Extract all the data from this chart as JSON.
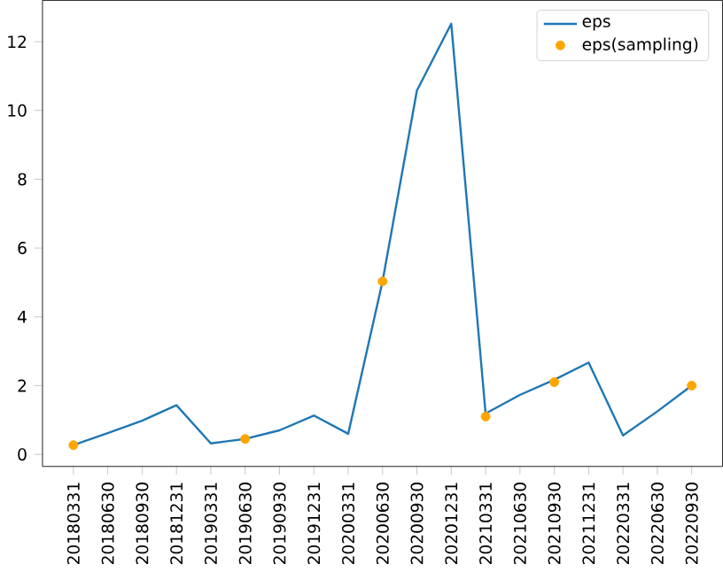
{
  "chart_data": {
    "type": "line",
    "categories": [
      "20180331",
      "20180630",
      "20180930",
      "20181231",
      "20190331",
      "20190630",
      "20190930",
      "20191231",
      "20200331",
      "20200630",
      "20200930",
      "20201231",
      "20210331",
      "20210630",
      "20210930",
      "20211231",
      "20220331",
      "20220630",
      "20220930"
    ],
    "series": [
      {
        "name": "eps",
        "color": "#1f77b4",
        "values": [
          0.27,
          0.62,
          0.98,
          1.43,
          0.32,
          0.45,
          0.7,
          1.13,
          0.6,
          5.03,
          10.58,
          12.52,
          1.19,
          1.73,
          2.17,
          2.67,
          0.55,
          1.25,
          2.0
        ]
      },
      {
        "name": "eps(sampling)",
        "type": "scatter",
        "color": "#ffa500",
        "x": [
          "20180331",
          "20190630",
          "20200630",
          "20210331",
          "20210930",
          "20220930"
        ],
        "values": [
          0.27,
          0.45,
          5.03,
          1.1,
          2.1,
          2.0
        ]
      }
    ],
    "ylim": [
      -0.35,
      13.2
    ],
    "yticks": [
      0,
      2,
      4,
      6,
      8,
      10,
      12
    ],
    "legend": "top right",
    "grid": false
  }
}
